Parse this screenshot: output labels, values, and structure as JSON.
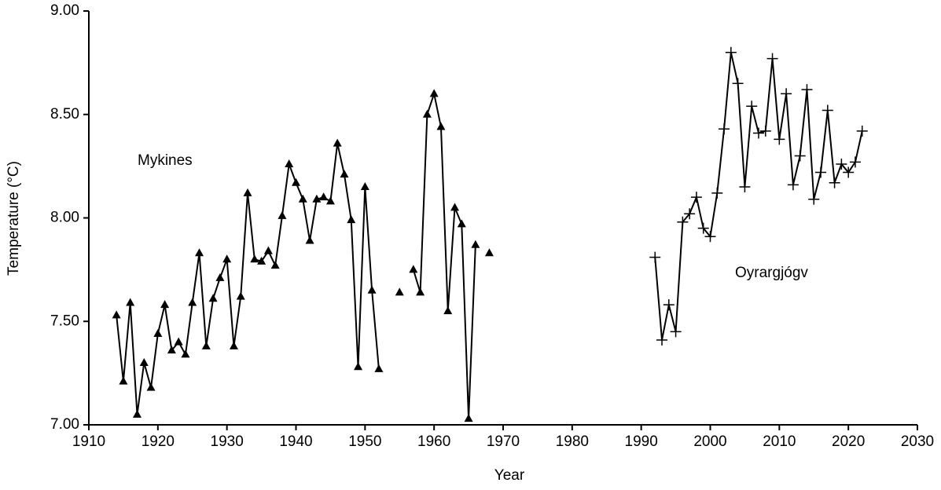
{
  "chart_data": {
    "type": "line",
    "x_label": "Year",
    "y_label": "Temperature (°C)",
    "xlim": [
      1910,
      2030
    ],
    "xticks": [
      1910,
      1920,
      1930,
      1940,
      1950,
      1960,
      1970,
      1980,
      1990,
      2000,
      2010,
      2020,
      2030
    ],
    "ylim": [
      7,
      9
    ],
    "yticks": [
      {
        "value": 7,
        "label": "7.00"
      },
      {
        "value": 7.5,
        "label": "7.50"
      },
      {
        "value": 8,
        "label": "8.00"
      },
      {
        "value": 8.5,
        "label": "8.50"
      },
      {
        "value": 9,
        "label": "9.00"
      }
    ],
    "series": [
      {
        "name": "Mykines",
        "color": "#000000",
        "marker": "triangle",
        "x": [
          1914,
          1915,
          1916,
          1917,
          1918,
          1919,
          1920,
          1921,
          1922,
          1923,
          1924,
          1925,
          1926,
          1927,
          1928,
          1929,
          1930,
          1931,
          1932,
          1933,
          1934,
          1935,
          1936,
          1937,
          1938,
          1939,
          1940,
          1941,
          1942,
          1943,
          1944,
          1945,
          1946,
          1947,
          1948,
          1949,
          1950,
          1951,
          1952,
          1953,
          1954,
          1955,
          1956,
          1957,
          1958,
          1959,
          1960,
          1961,
          1962,
          1963,
          1964,
          1965,
          1966,
          1967,
          1968
        ],
        "values": [
          7.53,
          7.21,
          7.59,
          7.05,
          7.3,
          7.18,
          7.44,
          7.58,
          7.36,
          7.4,
          7.34,
          7.59,
          7.83,
          7.38,
          7.61,
          7.71,
          7.8,
          7.38,
          7.62,
          8.12,
          7.8,
          7.79,
          7.84,
          7.77,
          8.01,
          8.26,
          8.17,
          8.09,
          7.89,
          8.09,
          8.1,
          8.08,
          8.36,
          8.21,
          7.99,
          7.28,
          8.15,
          7.65,
          7.27,
          null,
          null,
          7.64,
          null,
          7.75,
          7.64,
          8.5,
          8.6,
          8.44,
          7.55,
          8.05,
          7.97,
          7.03,
          7.87,
          null,
          7.83
        ]
      },
      {
        "name": "Oyrargjógv",
        "color": "#000000",
        "marker": "plus",
        "x": [
          1992,
          1993,
          1994,
          1995,
          1996,
          1997,
          1998,
          1999,
          2000,
          2001,
          2002,
          2003,
          2004,
          2005,
          2006,
          2007,
          2008,
          2009,
          2010,
          2011,
          2012,
          2013,
          2014,
          2015,
          2016,
          2017,
          2018,
          2019,
          2020,
          2021,
          2022
        ],
        "values": [
          7.81,
          7.41,
          7.58,
          7.45,
          7.98,
          8.02,
          8.1,
          7.95,
          7.91,
          8.12,
          8.43,
          8.8,
          8.65,
          8.15,
          8.54,
          8.41,
          8.42,
          8.77,
          8.38,
          8.6,
          8.16,
          8.3,
          8.62,
          8.09,
          8.22,
          8.52,
          8.17,
          8.26,
          8.22,
          8.27,
          8.42
        ]
      }
    ]
  }
}
